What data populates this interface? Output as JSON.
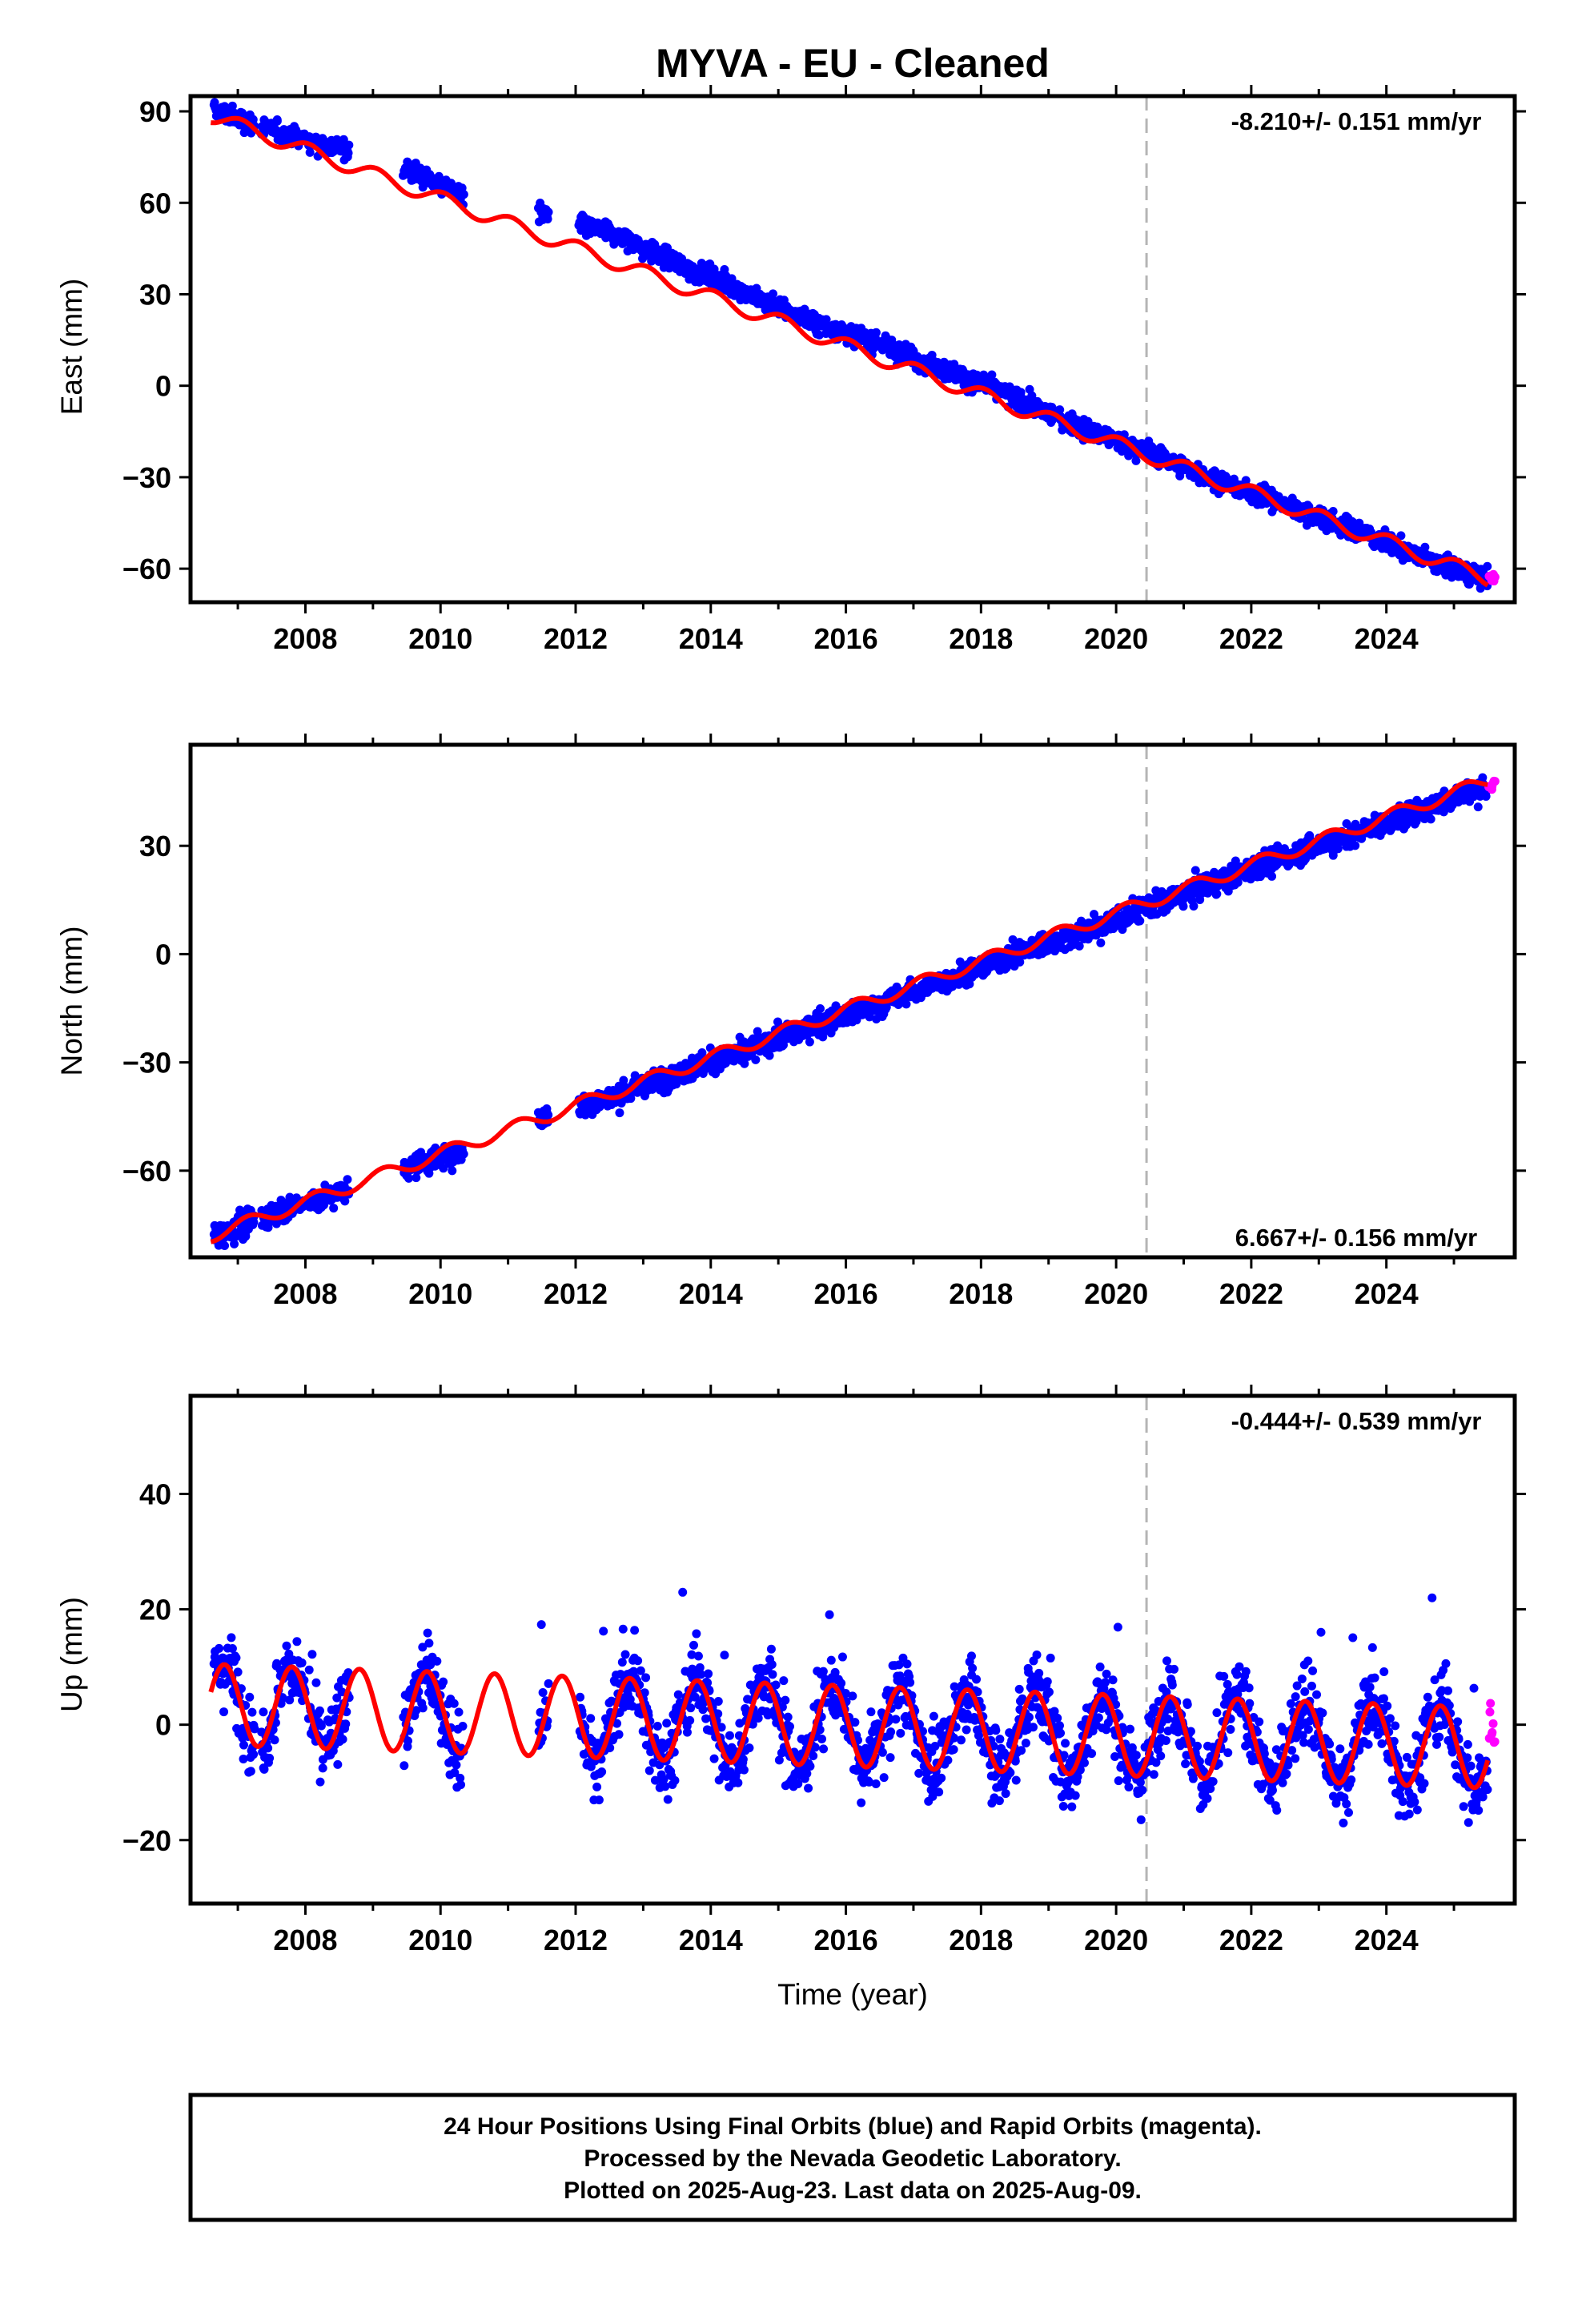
{
  "title": "MYVA  - EU - Cleaned",
  "chart_data": [
    {
      "type": "scatter",
      "panel": "east",
      "ylabel": "East (mm)",
      "xlabel": "",
      "ylim": [
        -71,
        95
      ],
      "xlim": [
        2006.3,
        2025.9
      ],
      "yticks": [
        -60,
        -30,
        0,
        30,
        60,
        90
      ],
      "xticks": [
        2008,
        2010,
        2012,
        2014,
        2016,
        2018,
        2020,
        2022,
        2024
      ],
      "rate_label": "-8.210+/- 0.151 mm/yr",
      "rate_position": "top-right",
      "equipment_change_year": 2020.45,
      "series": [
        {
          "color": "#0000ff",
          "segments": [
            [
              2006.65,
              2007.25
            ],
            [
              2007.35,
              2008.0
            ],
            [
              2008.05,
              2008.65
            ],
            [
              2009.45,
              2010.35
            ],
            [
              2011.45,
              2011.6
            ],
            [
              2012.05,
              2025.5
            ]
          ],
          "x": [
            2006.7,
            2007.5,
            2008.5,
            2009.5,
            2010.3,
            2011.55,
            2012.5,
            2013.5,
            2014.5,
            2015.5,
            2016.5,
            2017.5,
            2018.5,
            2019.5,
            2020.5,
            2021.5,
            2022.5,
            2023.5,
            2024.5,
            2025.4
          ],
          "y": [
            90,
            84,
            78,
            71,
            63,
            56,
            50,
            40,
            31,
            21,
            14,
            5,
            -4,
            -14,
            -22,
            -31,
            -39,
            -47,
            -56,
            -63
          ],
          "scatter_sd": 2.5
        },
        {
          "color": "#ff00ff",
          "segments": [
            [
              2025.52,
              2025.61
            ]
          ],
          "x": [
            2025.55
          ],
          "y": [
            -63
          ],
          "scatter_sd": 1.5
        },
        {
          "color": "#ff0000",
          "x": [
            2006.6,
            2025.5
          ],
          "y": [
            88.6,
            -63.2
          ],
          "seasonal_amp": 2.4,
          "seasonal_phase": 0.2
        }
      ]
    },
    {
      "type": "scatter",
      "panel": "north",
      "ylabel": "North (mm)",
      "xlabel": "",
      "ylim": [
        -84,
        58
      ],
      "xlim": [
        2006.3,
        2025.9
      ],
      "yticks": [
        -60,
        -30,
        0,
        30
      ],
      "xticks": [
        2008,
        2010,
        2012,
        2014,
        2016,
        2018,
        2020,
        2022,
        2024
      ],
      "rate_label": "6.667+/- 0.156 mm/yr",
      "rate_position": "bottom-right",
      "equipment_change_year": 2020.45,
      "series": [
        {
          "color": "#0000ff",
          "segments": [
            [
              2006.65,
              2007.25
            ],
            [
              2007.35,
              2008.0
            ],
            [
              2008.05,
              2008.65
            ],
            [
              2009.45,
              2010.35
            ],
            [
              2011.45,
              2011.6
            ],
            [
              2012.05,
              2025.5
            ]
          ],
          "x": [
            2006.7,
            2007.5,
            2008.5,
            2009.5,
            2010.3,
            2011.55,
            2012.5,
            2013.5,
            2014.5,
            2015.5,
            2016.5,
            2017.5,
            2018.5,
            2019.5,
            2020.5,
            2021.5,
            2022.5,
            2023.5,
            2024.5,
            2025.4
          ],
          "y": [
            -78,
            -72,
            -66,
            -59,
            -55,
            -45,
            -40,
            -33,
            -27,
            -20,
            -14,
            -7,
            0,
            6,
            13,
            20,
            27,
            33,
            40,
            46
          ],
          "scatter_sd": 2.5
        },
        {
          "color": "#ff00ff",
          "segments": [
            [
              2025.52,
              2025.61
            ]
          ],
          "x": [
            2025.55
          ],
          "y": [
            47
          ],
          "scatter_sd": 2
        },
        {
          "color": "#ff0000",
          "x": [
            2006.6,
            2025.5
          ],
          "y": [
            -78,
            48
          ],
          "seasonal_amp": 1.8,
          "seasonal_phase": 0.1
        }
      ]
    },
    {
      "type": "scatter",
      "panel": "up",
      "ylabel": "Up (mm)",
      "xlabel": "Time (year)",
      "ylim": [
        -31,
        57
      ],
      "xlim": [
        2006.3,
        2025.9
      ],
      "yticks": [
        -20,
        0,
        20,
        40
      ],
      "xticks": [
        2008,
        2010,
        2012,
        2014,
        2016,
        2018,
        2020,
        2022,
        2024
      ],
      "rate_label": "-0.444+/- 0.539 mm/yr",
      "rate_position": "top-right",
      "equipment_change_year": 2020.45,
      "series": [
        {
          "color": "#0000ff",
          "segments": [
            [
              2006.65,
              2007.25
            ],
            [
              2007.35,
              2008.0
            ],
            [
              2008.05,
              2008.65
            ],
            [
              2009.45,
              2010.35
            ],
            [
              2011.45,
              2011.6
            ],
            [
              2012.05,
              2025.5
            ]
          ],
          "x": [
            2006.7,
            2025.5
          ],
          "y": [
            3.5,
            -4
          ],
          "seasonal_amp": 7,
          "seasonal_phase": 0.45,
          "scatter_sd": 5
        },
        {
          "color": "#ff00ff",
          "segments": [
            [
              2025.52,
              2025.61
            ]
          ],
          "x": [
            2025.55
          ],
          "y": [
            0
          ],
          "scatter_sd": 4
        },
        {
          "color": "#ff0000",
          "x": [
            2006.6,
            2025.5
          ],
          "y": [
            3.5,
            -4
          ],
          "seasonal_amp": 7,
          "seasonal_phase": 0.45
        }
      ]
    }
  ],
  "footer": {
    "line1": "24 Hour Positions Using Final Orbits (blue) and Rapid Orbits (magenta).",
    "line2": "Processed by the Nevada Geodetic Laboratory.",
    "line3": "Plotted on 2025-Aug-23. Last data on 2025-Aug-09."
  }
}
